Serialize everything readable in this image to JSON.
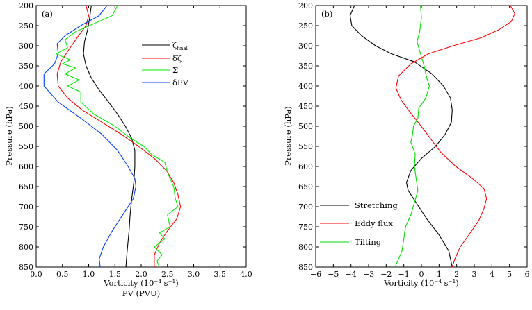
{
  "chart_data": [
    {
      "type": "line",
      "panel_label": "(a)",
      "xlabel": "Vorticity (10⁻⁴ s⁻¹)",
      "xlabel2": "PV (PVU)",
      "ylabel": "Pressure (hPa)",
      "xlim": [
        0,
        4
      ],
      "ylim": [
        200,
        850
      ],
      "xticks": [
        "0.0",
        "0.5",
        "1.0",
        "1.5",
        "2.0",
        "2.5",
        "3.0",
        "3.5",
        "4.0"
      ],
      "yticks": [
        "200",
        "250",
        "300",
        "350",
        "400",
        "450",
        "500",
        "550",
        "600",
        "650",
        "700",
        "750",
        "800",
        "850"
      ],
      "legend_position": "upper-right",
      "series": [
        {
          "name": "ζ",
          "subscript": "final",
          "color": "#000000",
          "points": [
            [
              1.05,
              200
            ],
            [
              1.02,
              230
            ],
            [
              0.98,
              260
            ],
            [
              0.92,
              290
            ],
            [
              0.9,
              320
            ],
            [
              0.95,
              350
            ],
            [
              1.05,
              380
            ],
            [
              1.2,
              410
            ],
            [
              1.38,
              440
            ],
            [
              1.55,
              470
            ],
            [
              1.7,
              500
            ],
            [
              1.82,
              530
            ],
            [
              1.88,
              560
            ],
            [
              1.88,
              600
            ],
            [
              1.86,
              640
            ],
            [
              1.82,
              680
            ],
            [
              1.79,
              720
            ],
            [
              1.77,
              760
            ],
            [
              1.74,
              800
            ],
            [
              1.72,
              830
            ],
            [
              1.71,
              850
            ]
          ]
        },
        {
          "name": "δζ",
          "color": "#ff0000",
          "points": [
            [
              0.95,
              200
            ],
            [
              1.0,
              225
            ],
            [
              0.95,
              250
            ],
            [
              0.78,
              280
            ],
            [
              0.62,
              310
            ],
            [
              0.47,
              340
            ],
            [
              0.4,
              370
            ],
            [
              0.42,
              400
            ],
            [
              0.6,
              430
            ],
            [
              0.88,
              460
            ],
            [
              1.25,
              490
            ],
            [
              1.62,
              520
            ],
            [
              1.95,
              550
            ],
            [
              2.25,
              580
            ],
            [
              2.48,
              610
            ],
            [
              2.62,
              640
            ],
            [
              2.7,
              670
            ],
            [
              2.75,
              700
            ],
            [
              2.68,
              730
            ],
            [
              2.5,
              760
            ],
            [
              2.35,
              790
            ],
            [
              2.25,
              820
            ],
            [
              2.25,
              850
            ]
          ]
        },
        {
          "name": "Σ",
          "color": "#00ee00",
          "points": [
            [
              1.55,
              200
            ],
            [
              1.45,
              225
            ],
            [
              1.1,
              245
            ],
            [
              0.75,
              265
            ],
            [
              0.55,
              285
            ],
            [
              0.6,
              305
            ],
            [
              0.38,
              320
            ],
            [
              0.65,
              335
            ],
            [
              0.5,
              345
            ],
            [
              0.75,
              355
            ],
            [
              0.55,
              370
            ],
            [
              0.82,
              385
            ],
            [
              0.6,
              400
            ],
            [
              0.85,
              415
            ],
            [
              0.85,
              440
            ],
            [
              1.1,
              470
            ],
            [
              1.5,
              500
            ],
            [
              1.8,
              530
            ],
            [
              2.05,
              550
            ],
            [
              2.2,
              570
            ],
            [
              2.45,
              590
            ],
            [
              2.5,
              615
            ],
            [
              2.55,
              630
            ],
            [
              2.62,
              650
            ],
            [
              2.65,
              680
            ],
            [
              2.7,
              700
            ],
            [
              2.5,
              720
            ],
            [
              2.55,
              750
            ],
            [
              2.35,
              765
            ],
            [
              2.45,
              780
            ],
            [
              2.25,
              800
            ],
            [
              2.4,
              820
            ],
            [
              2.3,
              835
            ],
            [
              2.35,
              850
            ]
          ]
        },
        {
          "name": "δPV",
          "color": "#0040ff",
          "points": [
            [
              1.35,
              200
            ],
            [
              1.2,
              225
            ],
            [
              0.85,
              250
            ],
            [
              0.55,
              275
            ],
            [
              0.4,
              295
            ],
            [
              0.42,
              320
            ],
            [
              0.35,
              345
            ],
            [
              0.15,
              370
            ],
            [
              0.15,
              400
            ],
            [
              0.42,
              440
            ],
            [
              0.85,
              480
            ],
            [
              1.25,
              520
            ],
            [
              1.55,
              560
            ],
            [
              1.75,
              600
            ],
            [
              1.88,
              630
            ],
            [
              1.9,
              650
            ],
            [
              1.85,
              680
            ],
            [
              1.65,
              720
            ],
            [
              1.45,
              760
            ],
            [
              1.28,
              800
            ],
            [
              1.2,
              830
            ],
            [
              1.22,
              850
            ]
          ]
        }
      ]
    },
    {
      "type": "line",
      "panel_label": "(b)",
      "xlabel": "Vorticity (10⁻⁴ s⁻¹)",
      "ylabel": "Pressure (hPa)",
      "xlim": [
        -6,
        6
      ],
      "ylim": [
        200,
        850
      ],
      "xticks": [
        "−6",
        "−5",
        "−4",
        "−3",
        "−2",
        "−1",
        "0",
        "1",
        "2",
        "3",
        "4",
        "5",
        "6"
      ],
      "yticks": [
        "200",
        "250",
        "300",
        "350",
        "400",
        "450",
        "500",
        "550",
        "600",
        "650",
        "700",
        "750",
        "800",
        "850"
      ],
      "legend_position": "lower-left",
      "series": [
        {
          "name": "Stretching",
          "color": "#000000",
          "points": [
            [
              -3.8,
              200
            ],
            [
              -4.05,
              225
            ],
            [
              -3.95,
              250
            ],
            [
              -3.4,
              275
            ],
            [
              -2.6,
              300
            ],
            [
              -1.7,
              320
            ],
            [
              -0.4,
              340
            ],
            [
              0.6,
              370
            ],
            [
              1.25,
              400
            ],
            [
              1.65,
              430
            ],
            [
              1.75,
              460
            ],
            [
              1.7,
              490
            ],
            [
              1.35,
              520
            ],
            [
              0.8,
              550
            ],
            [
              0.0,
              580
            ],
            [
              -0.6,
              610
            ],
            [
              -0.85,
              640
            ],
            [
              -0.75,
              660
            ],
            [
              -0.3,
              690
            ],
            [
              0.3,
              730
            ],
            [
              1.0,
              770
            ],
            [
              1.55,
              810
            ],
            [
              1.75,
              850
            ]
          ]
        },
        {
          "name": "Eddy flux",
          "color": "#ff0000",
          "points": [
            [
              5.05,
              200
            ],
            [
              5.3,
              220
            ],
            [
              5.1,
              240
            ],
            [
              4.4,
              260
            ],
            [
              3.4,
              280
            ],
            [
              1.8,
              300
            ],
            [
              0.4,
              320
            ],
            [
              -0.6,
              345
            ],
            [
              -1.3,
              375
            ],
            [
              -1.45,
              405
            ],
            [
              -1.15,
              435
            ],
            [
              -0.65,
              465
            ],
            [
              -0.1,
              495
            ],
            [
              0.5,
              530
            ],
            [
              1.1,
              565
            ],
            [
              1.95,
              600
            ],
            [
              2.9,
              630
            ],
            [
              3.55,
              655
            ],
            [
              3.7,
              680
            ],
            [
              3.55,
              705
            ],
            [
              3.25,
              735
            ],
            [
              2.7,
              770
            ],
            [
              2.2,
              800
            ],
            [
              1.9,
              830
            ],
            [
              1.75,
              850
            ]
          ]
        },
        {
          "name": "Tilting",
          "color": "#00dd00",
          "points": [
            [
              -0.05,
              200
            ],
            [
              0.0,
              230
            ],
            [
              -0.1,
              265
            ],
            [
              -0.25,
              290
            ],
            [
              -0.05,
              320
            ],
            [
              0.15,
              350
            ],
            [
              0.3,
              380
            ],
            [
              0.45,
              400
            ],
            [
              0.25,
              430
            ],
            [
              -0.15,
              455
            ],
            [
              -0.2,
              480
            ],
            [
              -0.45,
              500
            ],
            [
              -0.5,
              520
            ],
            [
              -0.6,
              540
            ],
            [
              -0.35,
              570
            ],
            [
              -0.4,
              600
            ],
            [
              -0.3,
              630
            ],
            [
              -0.2,
              660
            ],
            [
              -0.4,
              690
            ],
            [
              -0.6,
              720
            ],
            [
              -0.9,
              750
            ],
            [
              -1.0,
              780
            ],
            [
              -1.1,
              810
            ],
            [
              -1.5,
              850
            ]
          ]
        }
      ]
    }
  ]
}
